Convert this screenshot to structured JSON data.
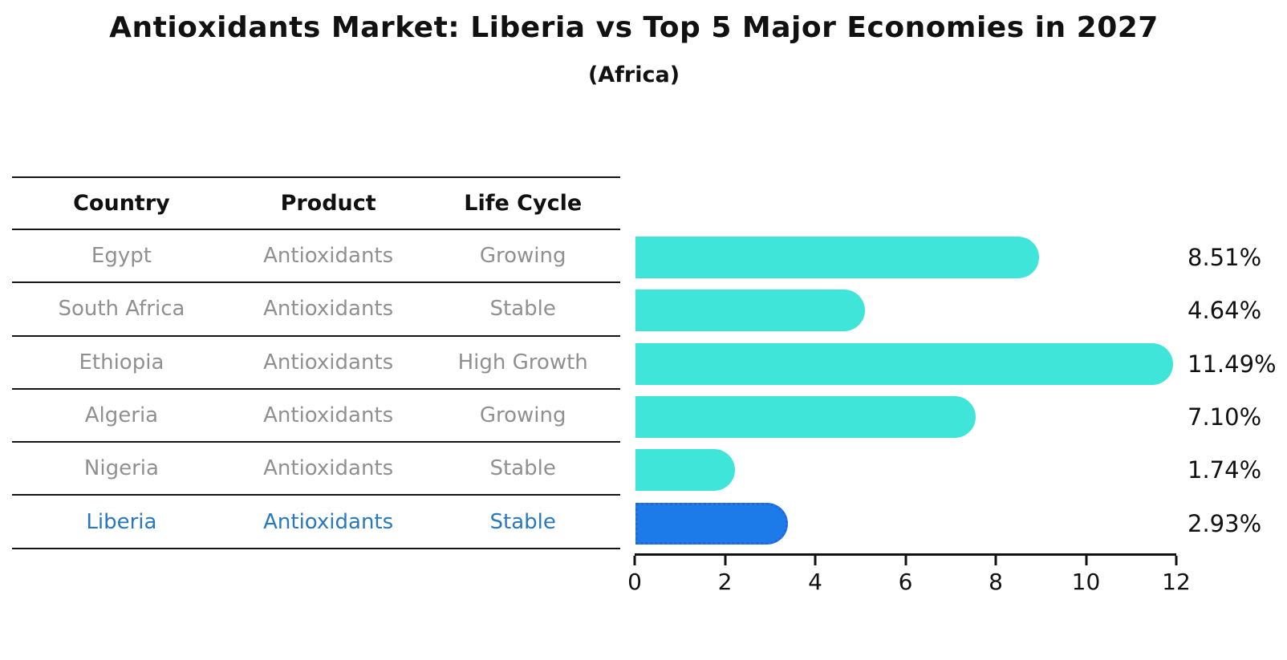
{
  "title": "Antioxidants Market: Liberia vs Top 5 Major Economies in 2027",
  "subtitle": "(Africa)",
  "table": {
    "headers": {
      "country": "Country",
      "product": "Product",
      "life_cycle": "Life Cycle"
    },
    "rows": [
      {
        "country": "Egypt",
        "product": "Antioxidants",
        "life_cycle": "Growing",
        "highlight": false
      },
      {
        "country": "South Africa",
        "product": "Antioxidants",
        "life_cycle": "Stable",
        "highlight": false
      },
      {
        "country": "Ethiopia",
        "product": "Antioxidants",
        "life_cycle": "High Growth",
        "highlight": false
      },
      {
        "country": "Algeria",
        "product": "Antioxidants",
        "life_cycle": "Growing",
        "highlight": false
      },
      {
        "country": "Nigeria",
        "product": "Antioxidants",
        "life_cycle": "Stable",
        "highlight": false
      },
      {
        "country": "Liberia",
        "product": "Antioxidants",
        "life_cycle": "Stable",
        "highlight": true
      }
    ]
  },
  "chart_data": {
    "type": "bar",
    "orientation": "horizontal",
    "title": "Antioxidants Market: Liberia vs Top 5 Major Economies in 2027 (Africa)",
    "categories": [
      "Egypt",
      "South Africa",
      "Ethiopia",
      "Algeria",
      "Nigeria",
      "Liberia"
    ],
    "values": [
      8.51,
      4.64,
      11.49,
      7.1,
      1.74,
      2.93
    ],
    "value_labels": [
      "8.51%",
      "4.64%",
      "11.49%",
      "7.10%",
      "1.74%",
      "2.93%"
    ],
    "xlabel": "",
    "ylabel": "",
    "xlim": [
      0,
      12
    ],
    "x_ticks": [
      0,
      2,
      4,
      6,
      8,
      10,
      12
    ],
    "x_tick_labels": [
      "0",
      "2",
      "4",
      "6",
      "8",
      "10",
      "12"
    ],
    "grid": false,
    "legend": false,
    "bar_color": "#40E5D9",
    "highlight_color": "#1C7BE8",
    "highlight_border_color": "#2A62D8",
    "highlight_index": 5
  }
}
